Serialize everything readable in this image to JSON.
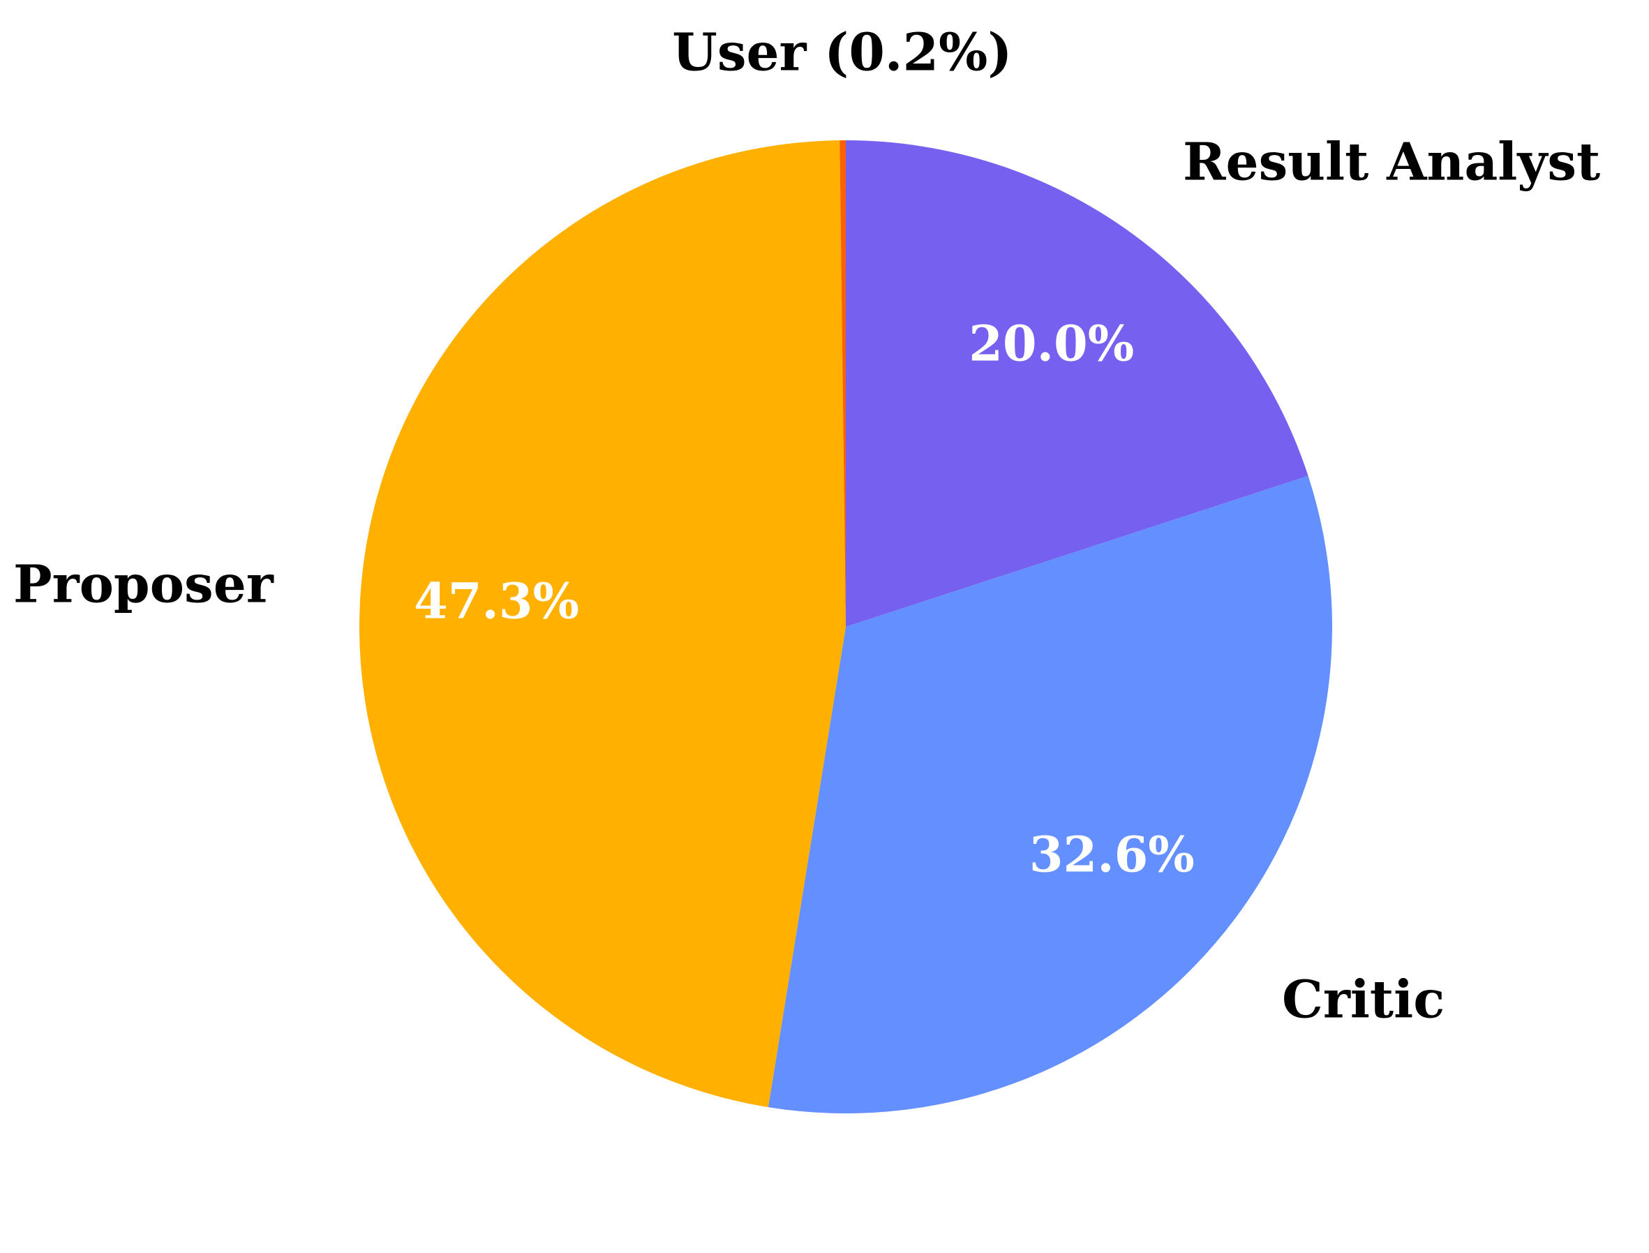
{
  "chart_data": {
    "type": "pie",
    "title": "",
    "start_angle_deg": 90,
    "direction": "clockwise",
    "slices": [
      {
        "label": "Result Analyst",
        "value": 20.0,
        "percent_text": "20.0%",
        "color": "#7660EF"
      },
      {
        "label": "Critic",
        "value": 32.6,
        "percent_text": "32.6%",
        "color": "#648FFF"
      },
      {
        "label": "Proposer",
        "value": 47.3,
        "percent_text": "47.3%",
        "color": "#FFB000"
      },
      {
        "label": "User (0.2%)",
        "value": 0.2,
        "percent_text": "",
        "color": "#FE6100"
      }
    ]
  }
}
